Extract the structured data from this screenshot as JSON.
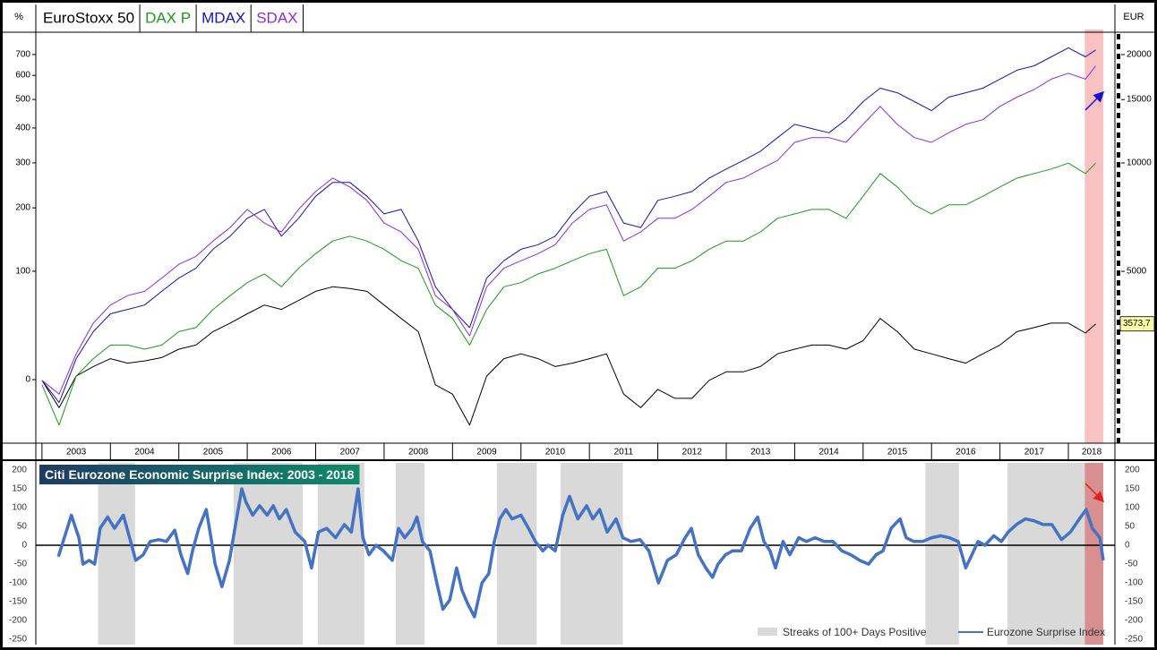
{
  "chart_data": [
    {
      "type": "line",
      "y_label": "EUR",
      "y2_label": "%",
      "x": [
        2003,
        2003.25,
        2003.5,
        2003.75,
        2004,
        2004.25,
        2004.5,
        2004.75,
        2005,
        2005.25,
        2005.5,
        2005.75,
        2006,
        2006.25,
        2006.5,
        2006.75,
        2007,
        2007.25,
        2007.5,
        2007.75,
        2008,
        2008.25,
        2008.5,
        2008.75,
        2009,
        2009.25,
        2009.5,
        2009.75,
        2010,
        2010.25,
        2010.5,
        2010.75,
        2011,
        2011.25,
        2011.5,
        2011.75,
        2012,
        2012.25,
        2012.5,
        2012.75,
        2013,
        2013.25,
        2013.5,
        2013.75,
        2014,
        2014.25,
        2014.5,
        2014.75,
        2015,
        2015.25,
        2015.5,
        2015.75,
        2016,
        2016.25,
        2016.5,
        2016.75,
        2017,
        2017.25,
        2017.5,
        2017.75,
        2018,
        2018.25,
        2018.4
      ],
      "xlim": [
        2002.91,
        2018.68
      ],
      "xticks": [
        2003,
        2004,
        2005,
        2006,
        2007,
        2008,
        2009,
        2010,
        2011,
        2012,
        2013,
        2014,
        2015,
        2016,
        2017,
        2018
      ],
      "ylim": [
        1666,
        22810
      ],
      "yticks": [
        5000,
        10000,
        15000,
        20000
      ],
      "yscale": "log",
      "y2lim": [
        -33.4,
        812
      ],
      "y2ticks": [
        0,
        100,
        200,
        300,
        400,
        500,
        600,
        700
      ],
      "y2scale": "log-return",
      "series": [
        {
          "name": "EuroStoxx 50",
          "color": "#000000",
          "values": [
            2490,
            2090,
            2560,
            2720,
            2860,
            2780,
            2820,
            2880,
            3040,
            3120,
            3400,
            3590,
            3810,
            4030,
            3920,
            4150,
            4400,
            4530,
            4480,
            4400,
            4030,
            3700,
            3400,
            2420,
            2280,
            1870,
            2560,
            2860,
            2950,
            2860,
            2720,
            2780,
            2860,
            2950,
            2280,
            2090,
            2350,
            2220,
            2220,
            2490,
            2630,
            2630,
            2720,
            2950,
            3040,
            3120,
            3120,
            3040,
            3210,
            3700,
            3400,
            3040,
            2950,
            2860,
            2780,
            2950,
            3120,
            3400,
            3490,
            3590,
            3590,
            3370,
            3573.7
          ],
          "value_labels": [
            null,
            null,
            null,
            null,
            null,
            null,
            null,
            null,
            null,
            null,
            null,
            null,
            null,
            null,
            null,
            null,
            null,
            null,
            null,
            null,
            null,
            null,
            null,
            null,
            null,
            null,
            null,
            null,
            null,
            null,
            null,
            null,
            null,
            null,
            null,
            null,
            null,
            null,
            null,
            null,
            null,
            null,
            null,
            null,
            null,
            null,
            null,
            null,
            null,
            null,
            null,
            null,
            null,
            null,
            null,
            null,
            null,
            null,
            null,
            null,
            null,
            null,
            "3573,7"
          ]
        },
        {
          "name": "DAX P",
          "color": "#1a9a1a",
          "values": [
            2420,
            1870,
            2560,
            2860,
            3120,
            3120,
            3040,
            3120,
            3400,
            3490,
            3920,
            4280,
            4650,
            4920,
            4530,
            5100,
            5600,
            6070,
            6260,
            6070,
            5760,
            5350,
            5100,
            4030,
            3700,
            3120,
            3920,
            4530,
            4650,
            4920,
            5100,
            5350,
            5600,
            5760,
            4280,
            4530,
            5100,
            5100,
            5350,
            5760,
            6070,
            6070,
            6430,
            7020,
            7220,
            7430,
            7430,
            7020,
            8080,
            9350,
            8580,
            7650,
            7220,
            7650,
            7650,
            8080,
            8580,
            9080,
            9350,
            9620,
            9990,
            9350,
            9990
          ]
        },
        {
          "name": "MDAX",
          "color": "#1414b8",
          "values": [
            2490,
            2160,
            2860,
            3400,
            3810,
            3920,
            4030,
            4400,
            4790,
            5100,
            5760,
            6260,
            7020,
            7430,
            6260,
            7020,
            8080,
            8830,
            8830,
            8080,
            7220,
            7430,
            6070,
            4530,
            3920,
            3490,
            4790,
            5350,
            5760,
            5930,
            6260,
            7220,
            8080,
            8330,
            6810,
            6620,
            7870,
            8080,
            8330,
            9080,
            9620,
            10160,
            10780,
            11760,
            12800,
            12460,
            12130,
            13190,
            14800,
            16130,
            15670,
            14800,
            13970,
            15230,
            15670,
            16130,
            17090,
            18100,
            18610,
            19710,
            20880,
            19710,
            20600
          ]
        },
        {
          "name": "SDAX",
          "color": "#8a2be2",
          "values": [
            2490,
            2280,
            2950,
            3590,
            4030,
            4280,
            4400,
            4790,
            5230,
            5500,
            6070,
            6620,
            7430,
            6810,
            6430,
            7430,
            8330,
            9080,
            8580,
            7870,
            6810,
            6430,
            5760,
            4280,
            3920,
            3310,
            4530,
            5100,
            5350,
            5600,
            5930,
            6810,
            7430,
            7650,
            6070,
            6430,
            7020,
            7020,
            7430,
            8080,
            8830,
            9080,
            9620,
            10160,
            11410,
            11760,
            11760,
            11410,
            12800,
            14360,
            12800,
            11760,
            11410,
            12130,
            12800,
            13190,
            14360,
            15230,
            15990,
            17090,
            17750,
            17090,
            18610
          ]
        }
      ],
      "highlight": {
        "range": [
          2018.24,
          2018.51
        ],
        "color": "#f6a8a8"
      }
    },
    {
      "type": "line",
      "title": "Citi Eurozone Economic Surprise Index: 2003 - 2018",
      "x": [
        2003.24,
        2003.37,
        2003.43,
        2003.54,
        2003.6,
        2003.69,
        2003.77,
        2003.85,
        2003.96,
        2004.06,
        2004.19,
        2004.28,
        2004.37,
        2004.48,
        2004.58,
        2004.71,
        2004.82,
        2004.94,
        2005.03,
        2005.13,
        2005.2,
        2005.29,
        2005.4,
        2005.47,
        2005.53,
        2005.63,
        2005.74,
        2005.81,
        2005.92,
        2005.98,
        2006.08,
        2006.18,
        2006.29,
        2006.38,
        2006.47,
        2006.57,
        2006.7,
        2006.84,
        2006.94,
        2007.04,
        2007.16,
        2007.29,
        2007.42,
        2007.52,
        2007.62,
        2007.69,
        2007.78,
        2007.88,
        2007.99,
        2008.12,
        2008.21,
        2008.3,
        2008.41,
        2008.48,
        2008.56,
        2008.67,
        2008.77,
        2008.86,
        2008.96,
        2009.06,
        2009.14,
        2009.22,
        2009.32,
        2009.43,
        2009.53,
        2009.61,
        2009.69,
        2009.78,
        2009.87,
        2010,
        2010.11,
        2010.21,
        2010.32,
        2010.4,
        2010.5,
        2010.61,
        2010.71,
        2010.83,
        2010.96,
        2011.05,
        2011.15,
        2011.26,
        2011.39,
        2011.49,
        2011.61,
        2011.74,
        2011.87,
        2012.01,
        2012.14,
        2012.27,
        2012.4,
        2012.49,
        2012.59,
        2012.7,
        2012.8,
        2012.88,
        2012.99,
        2013.09,
        2013.22,
        2013.35,
        2013.46,
        2013.55,
        2013.64,
        2013.72,
        2013.83,
        2013.93,
        2014.06,
        2014.17,
        2014.3,
        2014.43,
        2014.56,
        2014.69,
        2014.82,
        2014.95,
        2015.08,
        2015.19,
        2015.29,
        2015.41,
        2015.54,
        2015.63,
        2015.74,
        2015.87,
        2016,
        2016.13,
        2016.26,
        2016.39,
        2016.5,
        2016.59,
        2016.68,
        2016.78,
        2016.91,
        2017.02,
        2017.12,
        2017.24,
        2017.37,
        2017.5,
        2017.63,
        2017.76,
        2017.9,
        2018.03,
        2018.16,
        2018.26,
        2018.35,
        2018.46,
        2018.51
      ],
      "xlim": [
        2002.91,
        2018.68
      ],
      "ylim": [
        -264,
        219
      ],
      "yticks": [
        200,
        150,
        100,
        50,
        0,
        -50,
        -100,
        -150,
        -200,
        -250
      ],
      "zero_line": true,
      "series": [
        {
          "name": "Eurozone Surprise Index",
          "color": "#4472c4",
          "values": [
            -30,
            45,
            80,
            20,
            -50,
            -40,
            -50,
            45,
            75,
            45,
            80,
            20,
            -40,
            -25,
            10,
            15,
            10,
            40,
            -25,
            -75,
            -15,
            45,
            95,
            20,
            -50,
            -110,
            -40,
            35,
            150,
            115,
            80,
            105,
            80,
            105,
            70,
            95,
            35,
            10,
            -60,
            35,
            45,
            20,
            55,
            35,
            150,
            20,
            -25,
            0,
            -15,
            -40,
            45,
            20,
            45,
            75,
            10,
            -15,
            -100,
            -170,
            -145,
            -60,
            -120,
            -155,
            -190,
            -100,
            -75,
            10,
            70,
            95,
            70,
            80,
            45,
            10,
            -15,
            0,
            -15,
            80,
            130,
            70,
            105,
            70,
            95,
            35,
            70,
            20,
            10,
            15,
            -15,
            -100,
            -40,
            -25,
            20,
            45,
            -25,
            -60,
            -85,
            -50,
            -25,
            -15,
            -15,
            45,
            75,
            10,
            -15,
            -60,
            10,
            -25,
            20,
            10,
            20,
            10,
            10,
            -15,
            -25,
            -40,
            -50,
            -25,
            -15,
            45,
            70,
            20,
            10,
            10,
            20,
            25,
            20,
            10,
            -60,
            -25,
            10,
            0,
            25,
            10,
            35,
            55,
            70,
            65,
            55,
            55,
            15,
            35,
            70,
            95,
            45,
            20,
            -40
          ]
        }
      ],
      "bands": {
        "name": "Streaks of 100+ Days Positive",
        "color": "#d9d9d9",
        "ranges": [
          [
            2003.82,
            2004.36
          ],
          [
            2005.8,
            2006.81
          ],
          [
            2007.03,
            2007.71
          ],
          [
            2008.17,
            2008.59
          ],
          [
            2009.65,
            2010.23
          ],
          [
            2010.58,
            2011.49
          ],
          [
            2015.91,
            2016.4
          ],
          [
            2017.11,
            2018.24
          ]
        ]
      },
      "highlight": {
        "range": [
          2018.24,
          2018.51
        ],
        "color": "#c96a6a"
      }
    }
  ]
}
